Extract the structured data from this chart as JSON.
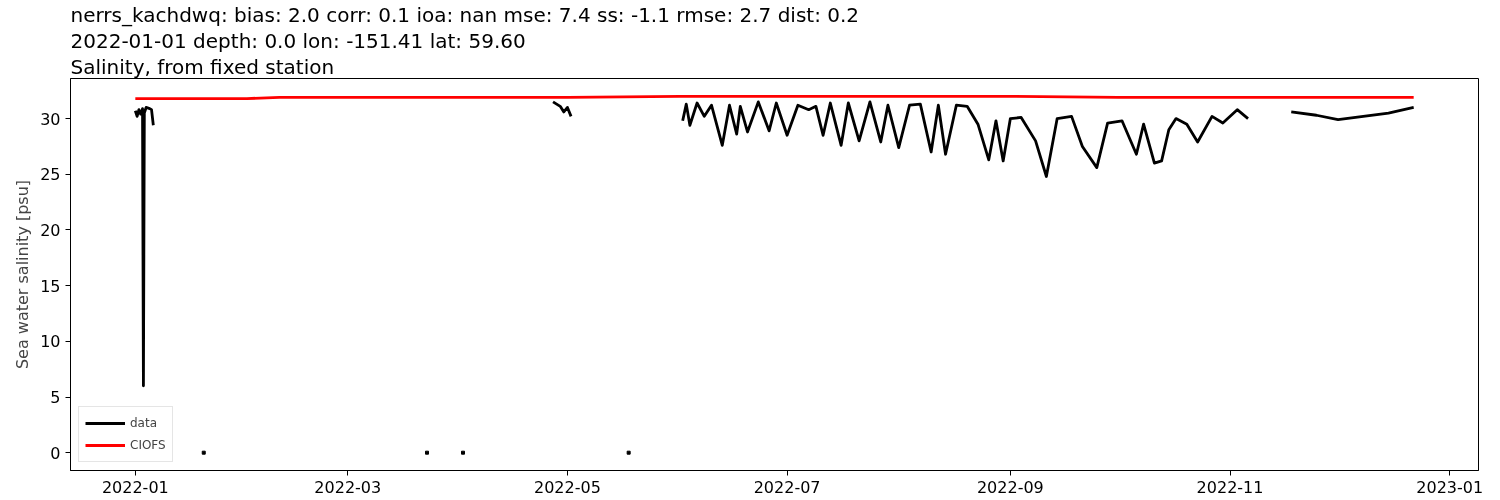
{
  "chart_data": {
    "type": "line",
    "title": "nerrs_kachdwq: bias: 2.0  corr: 0.1  ioa: nan  mse: 7.4  ss: -1.1  rmse: 2.7  dist: 0.2",
    "subtitle": "2022-01-01 depth: 0.0 lon: -151.41 lat: 59.60",
    "annotations": [
      "Salinity, from fixed station"
    ],
    "ylabel": "Sea water salinity [psu]",
    "xlim": [
      "2021-12-14",
      "2023-01-09"
    ],
    "xticks": [
      "2022-01",
      "2022-03",
      "2022-05",
      "2022-07",
      "2022-09",
      "2022-11",
      "2023-01"
    ],
    "ylim": [
      -1.6,
      33.6
    ],
    "yticks": [
      0,
      5,
      10,
      15,
      20,
      25,
      30
    ],
    "grid": false,
    "legend": "bottom left",
    "line_style": "solid",
    "series": [
      {
        "name": "data",
        "color": "#000000",
        "x": [
          "2022-01-01T00:00",
          "2022-01-01T12:00",
          "2022-01-02T00:00",
          "2022-01-02T12:00",
          "2022-01-03T00:00",
          "2022-01-03T06:00",
          "2022-01-03T12:00",
          "2022-01-04T00:00",
          "2022-01-05T00:00",
          "2022-01-05T12:00",
          "2022-01-06T00:00",
          "2022-02-20",
          "2022-04-27T00:00",
          "2022-04-28T00:00",
          "2022-04-29T00:00",
          "2022-04-30T00:00",
          "2022-05-01T00:00",
          "2022-05-02T00:00",
          "2022-05-20",
          "2022-06-02",
          "2022-06-03",
          "2022-06-04",
          "2022-06-06",
          "2022-06-08",
          "2022-06-10",
          "2022-06-13",
          "2022-06-15",
          "2022-06-17",
          "2022-06-18",
          "2022-06-20",
          "2022-06-23",
          "2022-06-26",
          "2022-06-28",
          "2022-07-01",
          "2022-07-04",
          "2022-07-07",
          "2022-07-09",
          "2022-07-11",
          "2022-07-13",
          "2022-07-16",
          "2022-07-18",
          "2022-07-21",
          "2022-07-24",
          "2022-07-27",
          "2022-07-29",
          "2022-08-01",
          "2022-08-04",
          "2022-08-07",
          "2022-08-10",
          "2022-08-12",
          "2022-08-14",
          "2022-08-17",
          "2022-08-20",
          "2022-08-23",
          "2022-08-26",
          "2022-08-28",
          "2022-08-30",
          "2022-09-01",
          "2022-09-04",
          "2022-09-08",
          "2022-09-11",
          "2022-09-14",
          "2022-09-18",
          "2022-09-21",
          "2022-09-25",
          "2022-09-28",
          "2022-10-02",
          "2022-10-06",
          "2022-10-08",
          "2022-10-11",
          "2022-10-13",
          "2022-10-15",
          "2022-10-17",
          "2022-10-20",
          "2022-10-23",
          "2022-10-27",
          "2022-10-30",
          "2022-11-03",
          "2022-11-06",
          "2022-11-12",
          "2022-11-18",
          "2022-11-25",
          "2022-12-01",
          "2022-12-08",
          "2022-12-15",
          "2022-12-22"
        ],
        "values": [
          30.7,
          30.2,
          30.8,
          30.4,
          30.9,
          6.0,
          30.5,
          31.0,
          30.9,
          30.8,
          29.4,
          null,
          31.5,
          31.3,
          31.1,
          30.6,
          31.0,
          30.2,
          null,
          29.8,
          31.3,
          29.4,
          31.4,
          30.2,
          31.2,
          27.6,
          31.2,
          28.6,
          31.1,
          28.8,
          31.5,
          28.9,
          31.4,
          28.5,
          31.2,
          30.8,
          31.1,
          28.5,
          31.4,
          27.6,
          31.4,
          28.0,
          31.5,
          27.9,
          31.2,
          27.4,
          31.2,
          31.3,
          27.0,
          31.2,
          26.8,
          31.2,
          31.1,
          29.5,
          26.3,
          29.8,
          26.2,
          30.0,
          30.1,
          28.0,
          24.8,
          30.0,
          30.2,
          27.5,
          25.6,
          29.6,
          29.8,
          26.8,
          29.5,
          26.0,
          26.2,
          29.0,
          30.0,
          29.5,
          27.9,
          30.2,
          29.6,
          30.8,
          30.0,
          null,
          30.6,
          30.3,
          29.9,
          30.2,
          30.5,
          31.0
        ]
      },
      {
        "type": "scatter",
        "color": "#000000",
        "marker": "square",
        "x": [
          "2022-01-20",
          "2022-03-23",
          "2022-04-02",
          "2022-05-18"
        ],
        "values": [
          0,
          0,
          0,
          0
        ]
      },
      {
        "name": "CIOFS",
        "color": "#ff0000",
        "x": [
          "2022-01-01",
          "2022-02-01",
          "2022-02-10",
          "2022-03-01",
          "2022-04-01",
          "2022-05-01",
          "2022-06-01",
          "2022-07-01",
          "2022-08-01",
          "2022-09-01",
          "2022-10-01",
          "2022-11-01",
          "2022-12-01",
          "2022-12-22"
        ],
        "values": [
          31.8,
          31.8,
          31.9,
          31.9,
          31.9,
          31.9,
          32.0,
          32.0,
          32.0,
          32.0,
          31.9,
          31.9,
          31.9,
          31.9
        ]
      }
    ]
  }
}
